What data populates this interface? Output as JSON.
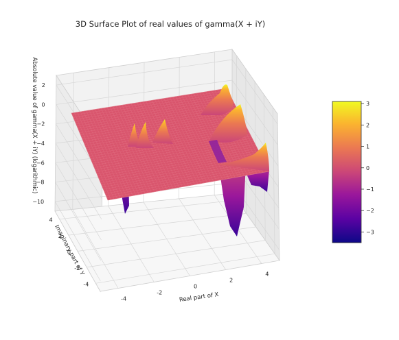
{
  "chart_data": {
    "type": "surface3d",
    "title": "3D Surface Plot of real values of gamma(X + iY)",
    "xlabel": "Real part of X",
    "ylabel": "Imaginary part of Y",
    "zlabel": "Absolute value of gamma(X + iY) (logarithmic)",
    "x_ticks": [
      -4,
      -2,
      0,
      2,
      4
    ],
    "y_ticks": [
      -4,
      -2,
      0,
      2,
      4
    ],
    "z_ticks": [
      2,
      0,
      -2,
      -4,
      -6,
      -8,
      -10
    ],
    "xlim": [
      -5,
      5
    ],
    "ylim": [
      -5,
      5
    ],
    "zlim": [
      -11,
      3
    ],
    "colormap": "plasma",
    "colorbar": {
      "ticks": [
        3,
        2,
        1,
        0,
        -1,
        -2,
        -3
      ],
      "range": [
        -3.5,
        3.1
      ],
      "colors": [
        "#0d0887",
        "#5b02a3",
        "#9a179b",
        "#cb4678",
        "#eb7852",
        "#fbb32f",
        "#f0f921"
      ]
    },
    "grid": true
  }
}
